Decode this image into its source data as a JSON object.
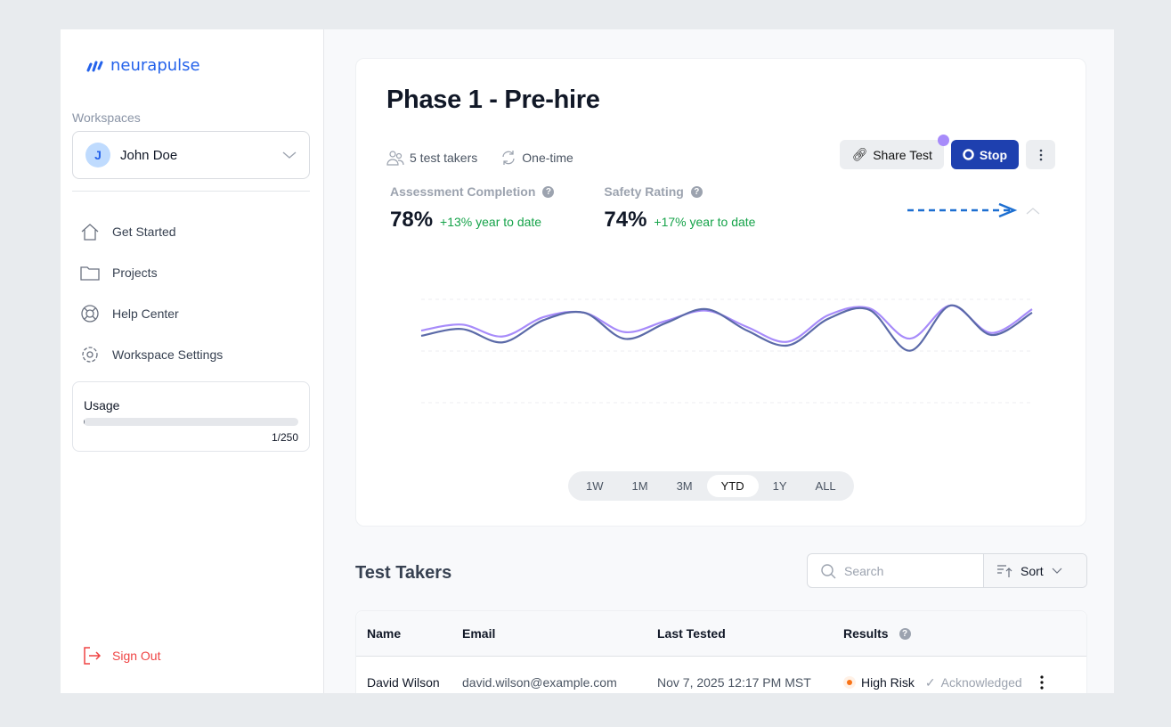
{
  "brand": {
    "name": "neurapulse",
    "color": "#2563eb"
  },
  "sidebar": {
    "workspaces_label": "Workspaces",
    "workspace": {
      "initial": "J",
      "name": "John Doe"
    },
    "items": [
      {
        "label": "Get Started",
        "icon": "home-icon"
      },
      {
        "label": "Projects",
        "icon": "folder-icon"
      },
      {
        "label": "Help Center",
        "icon": "lifebuoy-icon"
      },
      {
        "label": "Workspace Settings",
        "icon": "gear-icon"
      }
    ],
    "usage": {
      "label": "Usage",
      "count": "1/250",
      "fraction": 0.004
    },
    "sign_out": "Sign Out"
  },
  "header": {
    "title": "Phase 1 - Pre-hire",
    "takers": "5 test takers",
    "frequency": "One-time",
    "share_label": "Share Test",
    "stop_label": "Stop"
  },
  "kpis": [
    {
      "label": "Assessment Completion",
      "value": "78%",
      "delta": "+13% year to date"
    },
    {
      "label": "Safety Rating",
      "value": "74%",
      "delta": "+17% year to date"
    }
  ],
  "chart_data": {
    "type": "line",
    "grid": true,
    "series": [
      {
        "color": "#a78bfa",
        "values": [
          69.8,
          75.6,
          64.1,
          82.8,
          87.1,
          68.3,
          79.0,
          89.1,
          73.3,
          59.0,
          84.8,
          91.4,
          62.0,
          94.1,
          67.5,
          90.5
        ]
      },
      {
        "color": "#5b6aa8",
        "values": [
          64.7,
          71.3,
          58.4,
          79.9,
          87.1,
          61.8,
          77.0,
          90.5,
          69.8,
          55.4,
          81.3,
          89.9,
          50.3,
          94.1,
          65.5,
          87.1
        ]
      }
    ]
  },
  "ranges": {
    "options": [
      "1W",
      "1M",
      "3M",
      "YTD",
      "1Y",
      "ALL"
    ],
    "selected": "YTD"
  },
  "test_takers": {
    "title": "Test Takers",
    "search_placeholder": "Search",
    "sort_label": "Sort",
    "columns": [
      "Name",
      "Email",
      "Last Tested",
      "Results"
    ],
    "rows": [
      {
        "name": "David Wilson",
        "email": "david.wilson@example.com",
        "last_tested": "Nov 7, 2025 12:17 PM MST",
        "result": "High Risk",
        "status": "Acknowledged"
      }
    ]
  }
}
